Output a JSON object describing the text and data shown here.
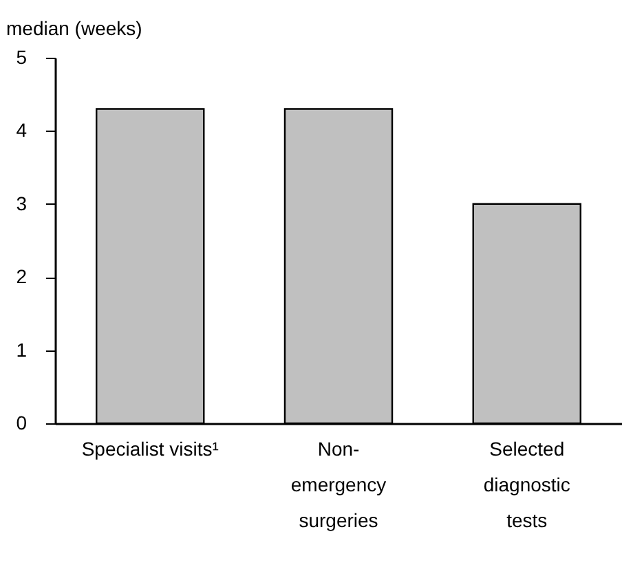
{
  "chart_data": {
    "type": "bar",
    "ylabel": "median (weeks)",
    "categories": [
      "Specialist visits¹",
      "Non-\nemergency\nsurgeries",
      "Selected\ndiagnostic\ntests"
    ],
    "values": [
      4.3,
      4.3,
      3.0
    ],
    "color": "#c0c0c0",
    "ylim": [
      0,
      5
    ],
    "yticks": [
      0,
      1,
      2,
      3,
      4,
      5
    ],
    "grid": false
  }
}
